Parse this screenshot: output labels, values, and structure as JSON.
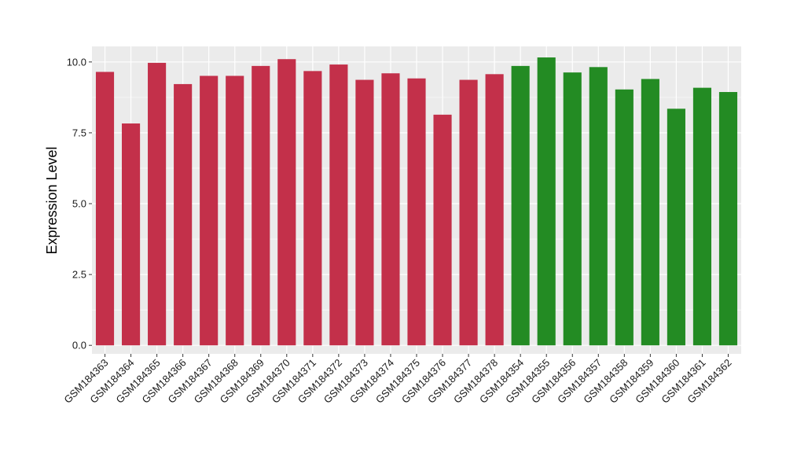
{
  "chart_data": {
    "type": "bar",
    "title": "",
    "xlabel": "",
    "ylabel": "Expression Level",
    "ylim": [
      -0.3,
      10.55
    ],
    "yticks": [
      0.0,
      2.5,
      5.0,
      7.5,
      10.0
    ],
    "ytick_labels": [
      "0.0",
      "2.5",
      "5.0",
      "7.5",
      "10.0"
    ],
    "grid": true,
    "legend": "none",
    "categories": [
      "GSM184363",
      "GSM184364",
      "GSM184365",
      "GSM184366",
      "GSM184367",
      "GSM184368",
      "GSM184369",
      "GSM184370",
      "GSM184371",
      "GSM184372",
      "GSM184373",
      "GSM184374",
      "GSM184375",
      "GSM184376",
      "GSM184377",
      "GSM184378",
      "GSM184354",
      "GSM184355",
      "GSM184356",
      "GSM184357",
      "GSM184358",
      "GSM184359",
      "GSM184360",
      "GSM184361",
      "GSM184362"
    ],
    "values": [
      9.65,
      7.83,
      9.97,
      9.22,
      9.51,
      9.51,
      9.86,
      10.1,
      9.68,
      9.91,
      9.37,
      9.6,
      9.42,
      8.14,
      9.37,
      9.57,
      9.86,
      10.16,
      9.63,
      9.82,
      9.03,
      9.4,
      8.35,
      9.09,
      8.94
    ],
    "bar_colors": [
      "#c3304a",
      "#c3304a",
      "#c3304a",
      "#c3304a",
      "#c3304a",
      "#c3304a",
      "#c3304a",
      "#c3304a",
      "#c3304a",
      "#c3304a",
      "#c3304a",
      "#c3304a",
      "#c3304a",
      "#c3304a",
      "#c3304a",
      "#c3304a",
      "#238b23",
      "#238b23",
      "#238b23",
      "#238b23",
      "#238b23",
      "#238b23",
      "#238b23",
      "#238b23",
      "#238b23"
    ],
    "panel_background": "#ebebeb",
    "grid_color": "#ffffff"
  }
}
